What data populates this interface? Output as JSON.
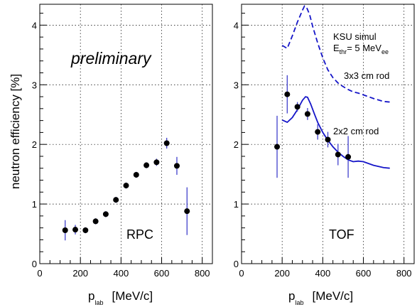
{
  "chart_data": [
    {
      "type": "scatter",
      "panel_label": "RPC",
      "annotation": "preliminary",
      "xlabel_main": "p",
      "xlabel_sub": "lab",
      "xlabel_unit": "[MeV/c]",
      "ylabel": "neutron efficiency  [%]",
      "xlim": [
        0,
        850
      ],
      "ylim": [
        0,
        4.35
      ],
      "x_ticks": [
        0,
        200,
        400,
        600,
        800
      ],
      "y_ticks": [
        0,
        1,
        2,
        3,
        4
      ],
      "grid": true,
      "series": [
        {
          "points": [
            {
              "x": 125,
              "y": 0.56,
              "err": 0.17
            },
            {
              "x": 175,
              "y": 0.57,
              "err": 0.08
            },
            {
              "x": 225,
              "y": 0.56,
              "err": 0.05
            },
            {
              "x": 275,
              "y": 0.71,
              "err": 0.05
            },
            {
              "x": 325,
              "y": 0.83,
              "err": 0.05
            },
            {
              "x": 375,
              "y": 1.07,
              "err": 0.05
            },
            {
              "x": 425,
              "y": 1.31,
              "err": 0.05
            },
            {
              "x": 475,
              "y": 1.49,
              "err": 0.05
            },
            {
              "x": 525,
              "y": 1.65,
              "err": 0.05
            },
            {
              "x": 575,
              "y": 1.7,
              "err": 0.06
            },
            {
              "x": 625,
              "y": 2.02,
              "err": 0.09
            },
            {
              "x": 675,
              "y": 1.64,
              "err": 0.15
            },
            {
              "x": 725,
              "y": 0.88,
              "err": 0.4
            }
          ]
        }
      ]
    },
    {
      "type": "scatter",
      "panel_label": "TOF",
      "xlabel_main": "p",
      "xlabel_sub": "lab",
      "xlabel_unit": "[MeV/c]",
      "xlim": [
        0,
        850
      ],
      "ylim": [
        0,
        4.35
      ],
      "x_ticks": [
        0,
        200,
        400,
        600,
        800
      ],
      "y_ticks": [
        0,
        1,
        2,
        3,
        4
      ],
      "grid": true,
      "legend_line1": "KSU simul",
      "legend_line2_main": "E",
      "legend_line2_sub": "thr",
      "legend_line2_mid": "= 5 MeV",
      "legend_line2_sub2": "ee",
      "label_3x3": "3x3 cm rod",
      "label_2x2": "2x2 cm rod",
      "series": [
        {
          "points": [
            {
              "x": 175,
              "y": 1.96,
              "err": 0.52
            },
            {
              "x": 225,
              "y": 2.84,
              "err": 0.32
            },
            {
              "x": 275,
              "y": 2.63,
              "err": 0.08
            },
            {
              "x": 325,
              "y": 2.51,
              "err": 0.1
            },
            {
              "x": 375,
              "y": 2.21,
              "err": 0.13
            },
            {
              "x": 425,
              "y": 2.08,
              "err": 0.13
            },
            {
              "x": 475,
              "y": 1.83,
              "err": 0.18
            },
            {
              "x": 525,
              "y": 1.79,
              "err": 0.35
            }
          ]
        }
      ],
      "curves": [
        {
          "style": "dashed",
          "x": [
            200,
            225,
            250,
            275,
            300,
            310,
            320,
            335,
            350,
            375,
            400,
            425,
            450,
            475,
            500,
            525,
            550,
            575,
            600,
            650,
            700,
            730
          ],
          "y": [
            3.66,
            3.61,
            3.82,
            4.05,
            4.25,
            4.32,
            4.3,
            4.18,
            3.98,
            3.7,
            3.45,
            3.25,
            3.12,
            3.03,
            2.97,
            2.92,
            2.88,
            2.86,
            2.83,
            2.77,
            2.72,
            2.71
          ]
        },
        {
          "style": "solid",
          "x": [
            200,
            225,
            250,
            275,
            300,
            315,
            325,
            340,
            360,
            375,
            400,
            425,
            450,
            475,
            500,
            525,
            550,
            575,
            600,
            650,
            700,
            730
          ],
          "y": [
            2.41,
            2.37,
            2.45,
            2.58,
            2.74,
            2.8,
            2.79,
            2.68,
            2.5,
            2.37,
            2.2,
            2.07,
            1.96,
            1.87,
            1.8,
            1.74,
            1.71,
            1.72,
            1.71,
            1.65,
            1.61,
            1.6
          ]
        }
      ]
    }
  ],
  "colors": {
    "simulation": "#1515c8",
    "data": "#000000",
    "errorbar": "#4040cc"
  }
}
